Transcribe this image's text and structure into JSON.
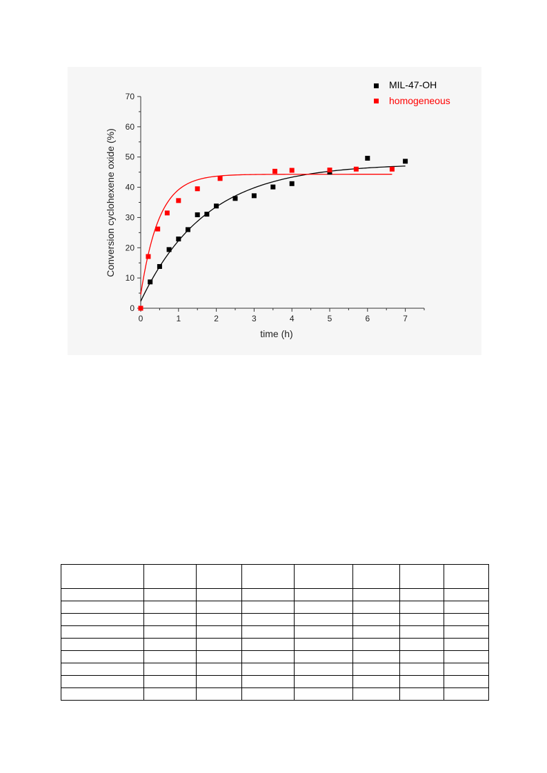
{
  "chart_data": {
    "type": "scatter",
    "title": "",
    "xlabel": "time (h)",
    "ylabel": "Conversion cyclohexene oxide (%)",
    "xlim": [
      0,
      7.5
    ],
    "ylim": [
      0,
      70
    ],
    "xticks": [
      0,
      1,
      2,
      3,
      4,
      5,
      6,
      7
    ],
    "yticks": [
      0,
      10,
      20,
      30,
      40,
      50,
      60,
      70
    ],
    "grid": false,
    "legend_position": "top-right",
    "series": [
      {
        "name": "MIL-47-OH",
        "color": "#000000",
        "marker": "square",
        "points": [
          [
            0.25,
            8.7
          ],
          [
            0.5,
            13.8
          ],
          [
            0.75,
            19.4
          ],
          [
            1.0,
            22.9
          ],
          [
            1.25,
            26.0
          ],
          [
            1.5,
            30.9
          ],
          [
            1.75,
            31.1
          ],
          [
            2.0,
            33.8
          ],
          [
            2.5,
            36.3
          ],
          [
            3.0,
            37.2
          ],
          [
            3.5,
            40.1
          ],
          [
            4.0,
            41.2
          ],
          [
            5.0,
            45.0
          ],
          [
            6.0,
            49.6
          ],
          [
            7.0,
            48.6
          ]
        ],
        "fit": {
          "model": "exponential",
          "y0": 2.3,
          "plateau": 47.8,
          "k": 0.58,
          "x_range": [
            0,
            7
          ]
        }
      },
      {
        "name": "homogeneous",
        "color": "#ff0000",
        "marker": "square",
        "points": [
          [
            0.0,
            0.0
          ],
          [
            0.2,
            17.1
          ],
          [
            0.45,
            26.2
          ],
          [
            0.7,
            31.5
          ],
          [
            1.0,
            35.6
          ],
          [
            1.5,
            39.5
          ],
          [
            2.1,
            42.9
          ],
          [
            3.55,
            45.3
          ],
          [
            4.0,
            45.6
          ],
          [
            5.0,
            45.7
          ],
          [
            5.7,
            46.0
          ],
          [
            6.65,
            46.0
          ]
        ],
        "fit": {
          "model": "exponential",
          "y0": 4.5,
          "plateau": 44.3,
          "k": 2.05,
          "x_range": [
            0,
            6.65
          ]
        }
      }
    ]
  },
  "table": {
    "columns": 8,
    "rows": 10
  }
}
